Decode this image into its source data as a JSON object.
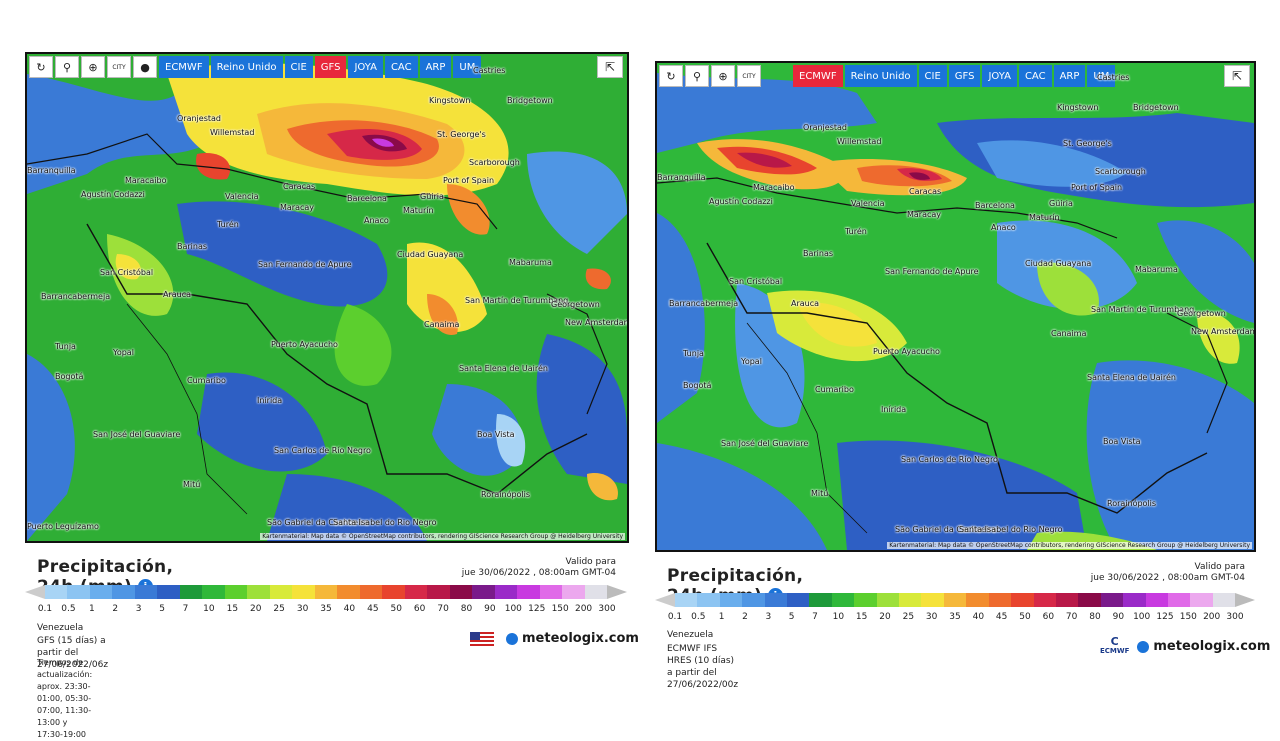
{
  "left": {
    "toolbar": {
      "icons": [
        "refresh-icon",
        "pin-icon",
        "zoom-icon",
        "city-icon",
        "dot-icon"
      ],
      "city_label": "CITY",
      "models": [
        "ECMWF",
        "Reino Unido",
        "CIE",
        "GFS",
        "JOYA",
        "CAC",
        "ARP",
        "UM"
      ],
      "active_model": "GFS"
    },
    "places": [
      "Oranjestad",
      "Willemstad",
      "Kingstown",
      "Bridgetown",
      "St. George's",
      "Scarborough",
      "Port of Spain",
      "Barranquilla",
      "Maracaibo",
      "Agustín Codazzi",
      "Valencia",
      "Caracas",
      "Barcelona",
      "Maturín",
      "Güiria",
      "Maracay",
      "Anaco",
      "Turén",
      "Barinas",
      "San Cristóbal",
      "San Fernando de Apure",
      "Ciudad Guayana",
      "Mabaruma",
      "Barrancabermeja",
      "Arauca",
      "San Martín de Turumbang",
      "Georgetown",
      "New Amsterdam",
      "Canaima",
      "Tunja",
      "Yopal",
      "Puerto Ayacucho",
      "Bogotá",
      "Cumaribo",
      "Santa Elena de Uairén",
      "Inírida",
      "San José del Guaviare",
      "San Carlos de Río Negro",
      "Boa Vista",
      "Mitú",
      "Rorainópolis",
      "São Gabriel da Cachoeira",
      "Santa Isabel do Rio Negro",
      "Puerto Leguízamo",
      "Castries"
    ],
    "attribution": "Kartenmaterial: Map data © OpenStreetMap contributors, rendering GIScience Research Group @ Heidelberg University",
    "title": "Precipitación, 24h (mm)",
    "valid_label": "Valido para",
    "valid_date": "jue 30/06/2022 , 08:00am GMT-04",
    "region": "Venezuela",
    "model_run": "GFS (15 días) a partir del 27/06/2022/06z",
    "update_times": "Tiempos de actualización: aprox. 23:30-01:00, 05:30-07:00, 11:30-13:00 y 17:30-19:00",
    "brand": "meteologix.com"
  },
  "right": {
    "toolbar": {
      "icons": [
        "refresh-icon",
        "pin-icon",
        "zoom-icon",
        "city-icon"
      ],
      "city_label": "CITY",
      "models": [
        "ECMWF",
        "Reino Unido",
        "CIE",
        "GFS",
        "JOYA",
        "CAC",
        "ARP",
        "UM"
      ],
      "active_model": "ECMWF"
    },
    "attribution": "Kartenmaterial: Map data © OpenStreetMap contributors, rendering GIScience Research Group @ Heidelberg University",
    "title": "Precipitación, 24h (mm)",
    "valid_label": "Valido para",
    "valid_date": "jue 30/06/2022 , 08:00am GMT-04",
    "region": "Venezuela",
    "model_run": "ECMWF IFS HRES (10 días) a partir del 27/06/2022/00z",
    "brand": "meteologix.com",
    "logo_text": "ECMWF"
  },
  "legend": {
    "ticks": [
      "0.1",
      "0.5",
      "1",
      "2",
      "3",
      "5",
      "7",
      "10",
      "15",
      "20",
      "25",
      "30",
      "35",
      "40",
      "45",
      "50",
      "60",
      "70",
      "80",
      "90",
      "100",
      "125",
      "150",
      "200",
      "300"
    ],
    "colors": [
      "#a8d4f5",
      "#8cc4f2",
      "#6aaeed",
      "#4f96e4",
      "#3a7ad6",
      "#2e5fc4",
      "#1e9a3a",
      "#2fb83a",
      "#5ccf2e",
      "#9de03a",
      "#d8ea3a",
      "#f5e23a",
      "#f5b83a",
      "#f28c2e",
      "#ee6a2e",
      "#e8442e",
      "#d62848",
      "#b81848",
      "#8a0a48",
      "#7a1a8a",
      "#9a2ac8",
      "#c83ae0",
      "#e06ae8",
      "#eca8ee",
      "#e0e0e8"
    ]
  }
}
